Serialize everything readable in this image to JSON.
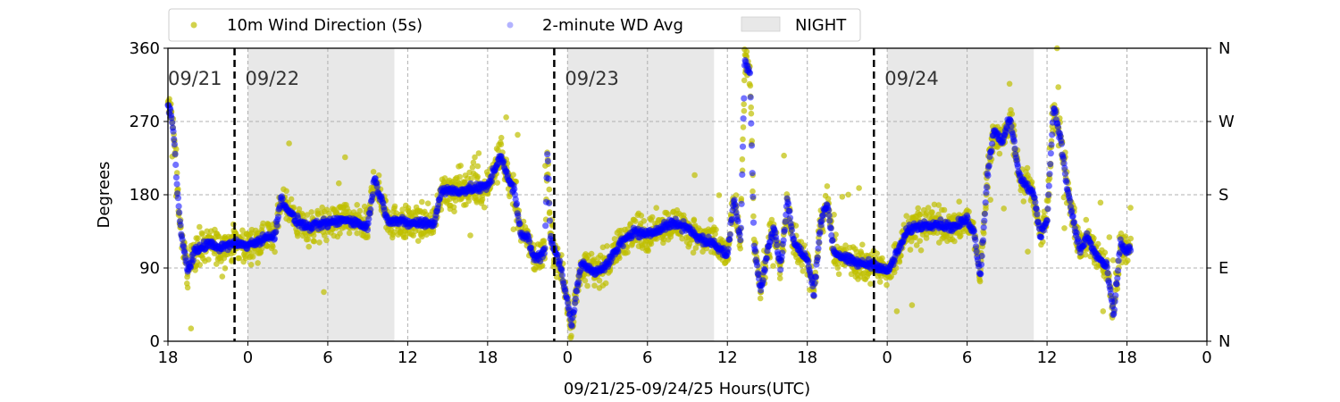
{
  "chart_data": {
    "type": "scatter",
    "xlabel": "09/21/25-09/24/25  Hours(UTC)",
    "ylabel": "Degrees",
    "x_ticks": [
      {
        "x": 0,
        "label": "18"
      },
      {
        "x": 6,
        "label": "0"
      },
      {
        "x": 12,
        "label": "6"
      },
      {
        "x": 18,
        "label": "12"
      },
      {
        "x": 24,
        "label": "18"
      },
      {
        "x": 30,
        "label": "0"
      },
      {
        "x": 36,
        "label": "6"
      },
      {
        "x": 42,
        "label": "12"
      },
      {
        "x": 48,
        "label": "18"
      },
      {
        "x": 54,
        "label": "0"
      },
      {
        "x": 60,
        "label": "6"
      },
      {
        "x": 66,
        "label": "12"
      },
      {
        "x": 72,
        "label": "18"
      },
      {
        "x": 78,
        "label": "0"
      }
    ],
    "xlim": [
      0,
      78
    ],
    "ylim": [
      0,
      360
    ],
    "y_ticks": [
      {
        "v": 0,
        "label": "0"
      },
      {
        "v": 90,
        "label": "90"
      },
      {
        "v": 180,
        "label": "180"
      },
      {
        "v": 270,
        "label": "270"
      },
      {
        "v": 360,
        "label": "360"
      }
    ],
    "y_ticks_right": [
      {
        "v": 0,
        "label": "N"
      },
      {
        "v": 90,
        "label": "E"
      },
      {
        "v": 180,
        "label": "S"
      },
      {
        "v": 270,
        "label": "W"
      },
      {
        "v": 360,
        "label": "N"
      }
    ],
    "grid": true,
    "legend_position": "top-center",
    "legend": [
      {
        "label": "10m Wind Direction (5s)",
        "kind": "dot",
        "color": "#bfbf00"
      },
      {
        "label": "2-minute WD Avg",
        "kind": "dot",
        "color": "#8080ff"
      },
      {
        "label": "NIGHT",
        "kind": "patch",
        "color": "#e8e8e8"
      }
    ],
    "night_bands": [
      [
        6,
        17
      ],
      [
        30,
        41
      ],
      [
        54,
        65
      ]
    ],
    "day_dividers": [
      {
        "x": 5,
        "label": "09/22"
      },
      {
        "x": 29,
        "label": "09/23"
      },
      {
        "x": 53,
        "label": "09/24"
      }
    ],
    "start_label": "09/21",
    "series": [
      {
        "name": "10m Wind Direction (5s)",
        "color": "#bfbf00",
        "spread": 30,
        "points": [
          [
            0,
            290
          ],
          [
            0.3,
            275
          ],
          [
            0.5,
            240
          ],
          [
            0.7,
            190
          ],
          [
            1.0,
            130
          ],
          [
            1.5,
            85
          ],
          [
            2.0,
            110
          ],
          [
            3.0,
            120
          ],
          [
            4.0,
            115
          ],
          [
            5.0,
            120
          ],
          [
            6.0,
            118
          ],
          [
            7.0,
            125
          ],
          [
            8.0,
            130
          ],
          [
            8.5,
            175
          ],
          [
            9.5,
            150
          ],
          [
            10.5,
            140
          ],
          [
            12.0,
            145
          ],
          [
            13.5,
            150
          ],
          [
            15.0,
            140
          ],
          [
            15.5,
            200
          ],
          [
            16.5,
            150
          ],
          [
            18.0,
            145
          ],
          [
            20.0,
            145
          ],
          [
            20.5,
            185
          ],
          [
            22.0,
            185
          ],
          [
            24.0,
            190
          ],
          [
            25.0,
            230
          ],
          [
            25.5,
            200
          ],
          [
            26.0,
            185
          ],
          [
            26.5,
            130
          ],
          [
            27.0,
            130
          ],
          [
            27.5,
            100
          ],
          [
            28.3,
            110
          ],
          [
            28.5,
            240
          ],
          [
            28.7,
            130
          ],
          [
            29.5,
            90
          ],
          [
            30.3,
            20
          ],
          [
            31.0,
            95
          ],
          [
            32.0,
            85
          ],
          [
            33.0,
            95
          ],
          [
            34.0,
            120
          ],
          [
            35.0,
            135
          ],
          [
            36.0,
            130
          ],
          [
            37.0,
            140
          ],
          [
            38.0,
            145
          ],
          [
            39.0,
            140
          ],
          [
            40.0,
            125
          ],
          [
            41.0,
            120
          ],
          [
            42.0,
            105
          ],
          [
            42.5,
            175
          ],
          [
            43.0,
            125
          ],
          [
            43.3,
            345
          ],
          [
            43.7,
            330
          ],
          [
            44.0,
            120
          ],
          [
            44.5,
            60
          ],
          [
            45.0,
            110
          ],
          [
            45.5,
            140
          ],
          [
            46.0,
            90
          ],
          [
            46.5,
            175
          ],
          [
            47.0,
            120
          ],
          [
            48.0,
            100
          ],
          [
            48.5,
            60
          ],
          [
            49.0,
            145
          ],
          [
            49.5,
            170
          ],
          [
            50.0,
            110
          ],
          [
            51.0,
            100
          ],
          [
            52.0,
            95
          ],
          [
            53.0,
            95
          ],
          [
            54.0,
            85
          ],
          [
            54.5,
            100
          ],
          [
            55.5,
            135
          ],
          [
            56.0,
            140
          ],
          [
            57.5,
            145
          ],
          [
            59.0,
            140
          ],
          [
            60.0,
            150
          ],
          [
            60.5,
            135
          ],
          [
            61.0,
            80
          ],
          [
            61.5,
            200
          ],
          [
            62.0,
            260
          ],
          [
            62.7,
            245
          ],
          [
            63.2,
            275
          ],
          [
            63.7,
            225
          ],
          [
            64.0,
            200
          ],
          [
            65.0,
            180
          ],
          [
            65.5,
            130
          ],
          [
            66.0,
            150
          ],
          [
            66.5,
            290
          ],
          [
            67.0,
            250
          ],
          [
            67.5,
            190
          ],
          [
            68.0,
            145
          ],
          [
            68.5,
            110
          ],
          [
            69.0,
            130
          ],
          [
            69.5,
            110
          ],
          [
            70.0,
            100
          ],
          [
            70.5,
            90
          ],
          [
            71.0,
            30
          ],
          [
            71.5,
            120
          ],
          [
            72.0,
            110
          ],
          [
            72.3,
            115
          ]
        ]
      },
      {
        "name": "2-minute WD Avg",
        "color": "#0000ff",
        "spread": 8,
        "points": [
          [
            0,
            290
          ],
          [
            0.3,
            275
          ],
          [
            0.5,
            240
          ],
          [
            0.7,
            190
          ],
          [
            1.0,
            130
          ],
          [
            1.5,
            85
          ],
          [
            2.0,
            110
          ],
          [
            3.0,
            120
          ],
          [
            4.0,
            115
          ],
          [
            5.0,
            120
          ],
          [
            6.0,
            118
          ],
          [
            7.0,
            125
          ],
          [
            8.0,
            130
          ],
          [
            8.5,
            175
          ],
          [
            9.5,
            150
          ],
          [
            10.5,
            140
          ],
          [
            12.0,
            145
          ],
          [
            13.5,
            150
          ],
          [
            15.0,
            140
          ],
          [
            15.5,
            200
          ],
          [
            16.5,
            150
          ],
          [
            18.0,
            145
          ],
          [
            20.0,
            145
          ],
          [
            20.5,
            185
          ],
          [
            22.0,
            185
          ],
          [
            24.0,
            190
          ],
          [
            25.0,
            230
          ],
          [
            25.5,
            200
          ],
          [
            26.0,
            185
          ],
          [
            26.5,
            130
          ],
          [
            27.0,
            130
          ],
          [
            27.5,
            100
          ],
          [
            28.3,
            110
          ],
          [
            28.5,
            240
          ],
          [
            28.7,
            130
          ],
          [
            29.5,
            90
          ],
          [
            30.3,
            20
          ],
          [
            31.0,
            95
          ],
          [
            32.0,
            85
          ],
          [
            33.0,
            95
          ],
          [
            34.0,
            120
          ],
          [
            35.0,
            135
          ],
          [
            36.0,
            130
          ],
          [
            37.0,
            140
          ],
          [
            38.0,
            145
          ],
          [
            39.0,
            140
          ],
          [
            40.0,
            125
          ],
          [
            41.0,
            120
          ],
          [
            42.0,
            105
          ],
          [
            42.5,
            175
          ],
          [
            43.0,
            125
          ],
          [
            43.3,
            345
          ],
          [
            43.7,
            330
          ],
          [
            44.0,
            120
          ],
          [
            44.5,
            60
          ],
          [
            45.0,
            110
          ],
          [
            45.5,
            140
          ],
          [
            46.0,
            90
          ],
          [
            46.5,
            175
          ],
          [
            47.0,
            120
          ],
          [
            48.0,
            100
          ],
          [
            48.5,
            60
          ],
          [
            49.0,
            145
          ],
          [
            49.5,
            170
          ],
          [
            50.0,
            110
          ],
          [
            51.0,
            100
          ],
          [
            52.0,
            95
          ],
          [
            53.0,
            95
          ],
          [
            54.0,
            85
          ],
          [
            54.5,
            100
          ],
          [
            55.5,
            135
          ],
          [
            56.0,
            140
          ],
          [
            57.5,
            145
          ],
          [
            59.0,
            140
          ],
          [
            60.0,
            150
          ],
          [
            60.5,
            135
          ],
          [
            61.0,
            80
          ],
          [
            61.5,
            200
          ],
          [
            62.0,
            260
          ],
          [
            62.7,
            245
          ],
          [
            63.2,
            275
          ],
          [
            63.7,
            225
          ],
          [
            64.0,
            200
          ],
          [
            65.0,
            180
          ],
          [
            65.5,
            130
          ],
          [
            66.0,
            150
          ],
          [
            66.5,
            290
          ],
          [
            67.0,
            250
          ],
          [
            67.5,
            190
          ],
          [
            68.0,
            145
          ],
          [
            68.5,
            110
          ],
          [
            69.0,
            130
          ],
          [
            69.5,
            110
          ],
          [
            70.0,
            100
          ],
          [
            70.5,
            90
          ],
          [
            71.0,
            30
          ],
          [
            71.5,
            120
          ],
          [
            72.0,
            110
          ],
          [
            72.3,
            115
          ]
        ]
      }
    ]
  }
}
